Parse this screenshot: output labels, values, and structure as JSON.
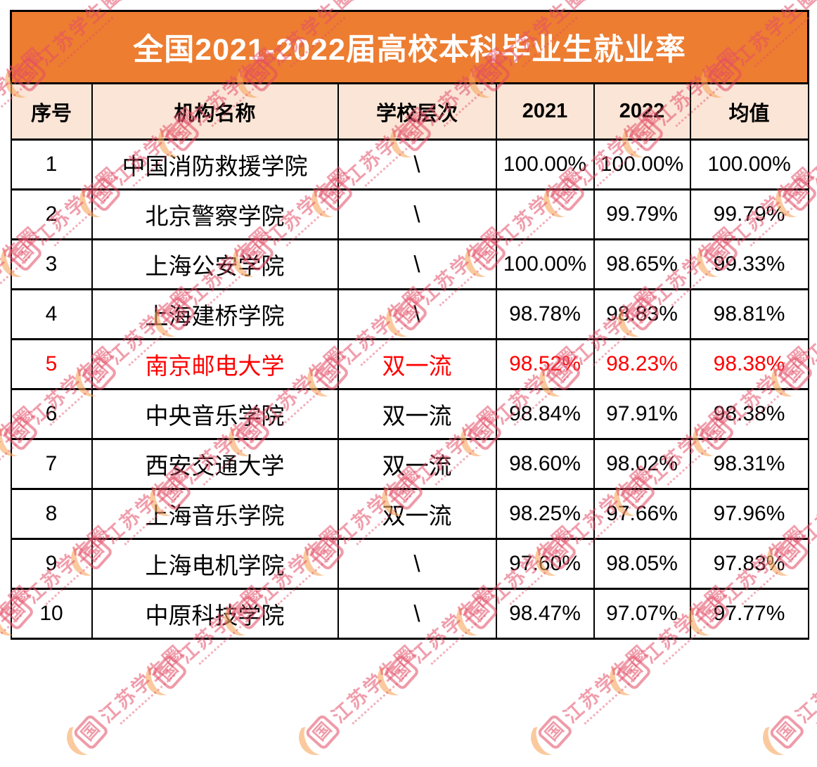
{
  "title": {
    "text": "全国2021-2022届高校本科毕业生就业率",
    "bg_color": "#ED7D31",
    "text_color": "#FFFFFF"
  },
  "table": {
    "header_bg": "#FBE5D6",
    "border_color": "#000000",
    "highlight_color": "#FF0000",
    "columns": [
      "序号",
      "机构名称",
      "学校层次",
      "2021",
      "2022",
      "均值"
    ],
    "rows": [
      {
        "no": "1",
        "name": "中国消防救援学院",
        "level": "\\",
        "y2021": "100.00%",
        "y2022": "100.00%",
        "avg": "100.00%",
        "highlight": false
      },
      {
        "no": "2",
        "name": "北京警察学院",
        "level": "\\",
        "y2021": "",
        "y2022": "99.79%",
        "avg": "99.79%",
        "highlight": false
      },
      {
        "no": "3",
        "name": "上海公安学院",
        "level": "\\",
        "y2021": "100.00%",
        "y2022": "98.65%",
        "avg": "99.33%",
        "highlight": false
      },
      {
        "no": "4",
        "name": "上海建桥学院",
        "level": "\\",
        "y2021": "98.78%",
        "y2022": "98.83%",
        "avg": "98.81%",
        "highlight": false
      },
      {
        "no": "5",
        "name": "南京邮电大学",
        "level": "双一流",
        "y2021": "98.52%",
        "y2022": "98.23%",
        "avg": "98.38%",
        "highlight": true
      },
      {
        "no": "6",
        "name": "中央音乐学院",
        "level": "双一流",
        "y2021": "98.84%",
        "y2022": "97.91%",
        "avg": "98.38%",
        "highlight": false
      },
      {
        "no": "7",
        "name": "西安交通大学",
        "level": "双一流",
        "y2021": "98.60%",
        "y2022": "98.02%",
        "avg": "98.31%",
        "highlight": false
      },
      {
        "no": "8",
        "name": "上海音乐学院",
        "level": "双一流",
        "y2021": "98.25%",
        "y2022": "97.66%",
        "avg": "97.96%",
        "highlight": false
      },
      {
        "no": "9",
        "name": "上海电机学院",
        "level": "\\",
        "y2021": "97.60%",
        "y2022": "98.05%",
        "avg": "97.83%",
        "highlight": false
      },
      {
        "no": "10",
        "name": "中原科技学院",
        "level": "\\",
        "y2021": "98.47%",
        "y2022": "97.07%",
        "avg": "97.77%",
        "highlight": false
      }
    ]
  },
  "watermark": {
    "text": "江苏学生圈",
    "logo_char": "国",
    "text_color": "#E44E67",
    "swoosh_color": "#F6A65E"
  },
  "chart_data": {
    "type": "table",
    "title": "全国2021-2022届高校本科毕业生就业率",
    "columns": [
      "序号",
      "机构名称",
      "学校层次",
      "2021",
      "2022",
      "均值"
    ],
    "rows": [
      [
        "1",
        "中国消防救援学院",
        "\\",
        "100.00%",
        "100.00%",
        "100.00%"
      ],
      [
        "2",
        "北京警察学院",
        "\\",
        "",
        "99.79%",
        "99.79%"
      ],
      [
        "3",
        "上海公安学院",
        "\\",
        "100.00%",
        "98.65%",
        "99.33%"
      ],
      [
        "4",
        "上海建桥学院",
        "\\",
        "98.78%",
        "98.83%",
        "98.81%"
      ],
      [
        "5",
        "南京邮电大学",
        "双一流",
        "98.52%",
        "98.23%",
        "98.38%"
      ],
      [
        "6",
        "中央音乐学院",
        "双一流",
        "98.84%",
        "97.91%",
        "98.38%"
      ],
      [
        "7",
        "西安交通大学",
        "双一流",
        "98.60%",
        "98.02%",
        "98.31%"
      ],
      [
        "8",
        "上海音乐学院",
        "双一流",
        "98.25%",
        "97.66%",
        "97.96%"
      ],
      [
        "9",
        "上海电机学院",
        "\\",
        "97.60%",
        "98.05%",
        "97.83%"
      ],
      [
        "10",
        "中原科技学院",
        "\\",
        "98.47%",
        "97.07%",
        "97.77%"
      ]
    ],
    "notes": "Row 5 (南京邮电大学) rendered in red; 学校层次 values are either \\ (none) or 双一流"
  }
}
